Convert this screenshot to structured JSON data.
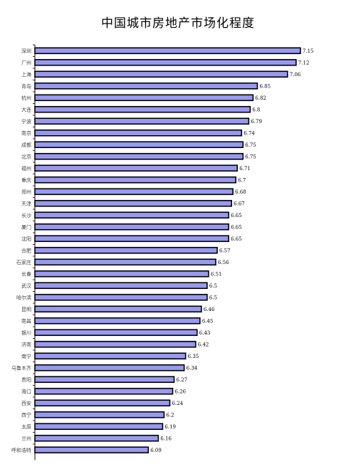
{
  "chart_data": {
    "type": "bar",
    "orientation": "horizontal",
    "title": "中国城市房地产市场化程度",
    "xlabel": "",
    "ylabel": "",
    "xlim": [
      5.3,
      7.2
    ],
    "grid": false,
    "legend": "none",
    "bar_color": "#9999ee",
    "categories": [
      "深圳",
      "广州",
      "上海",
      "青岛",
      "杭州",
      "大连",
      "宁波",
      "南京",
      "成都",
      "北京",
      "福州",
      "重庆",
      "郑州",
      "天津",
      "长沙",
      "厦门",
      "沈阳",
      "合肥",
      "石家庄",
      "长春",
      "武汉",
      "哈尔滨",
      "昆明",
      "南昌",
      "银川",
      "济南",
      "南宁",
      "乌鲁木齐",
      "贵阳",
      "海口",
      "西安",
      "西宁",
      "太原",
      "兰州",
      "呼和浩特"
    ],
    "values": [
      7.15,
      7.12,
      7.06,
      6.85,
      6.82,
      6.8,
      6.79,
      6.74,
      6.75,
      6.75,
      6.71,
      6.7,
      6.68,
      6.67,
      6.65,
      6.65,
      6.65,
      6.57,
      6.56,
      6.51,
      6.5,
      6.5,
      6.46,
      6.45,
      6.43,
      6.42,
      6.35,
      6.34,
      6.27,
      6.26,
      6.24,
      6.2,
      6.19,
      6.16,
      6.09
    ],
    "value_labels": [
      "7.15",
      "7.12",
      "7.06",
      "6.85",
      "6.82",
      "6.8",
      "6.79",
      "6.74",
      "6.75",
      "6.75",
      "6.71",
      "6.7",
      "6.68",
      "6.67",
      "6.65",
      "6.65",
      "6.65",
      "6.57",
      "6.56",
      "6.51",
      "6.5",
      "6.5",
      "6.46",
      "6.45",
      "6.43",
      "6.42",
      "6.35",
      "6.34",
      "6.27",
      "6.26",
      "6.24",
      "6.2",
      "6.19",
      "6.16",
      "6.09"
    ]
  }
}
